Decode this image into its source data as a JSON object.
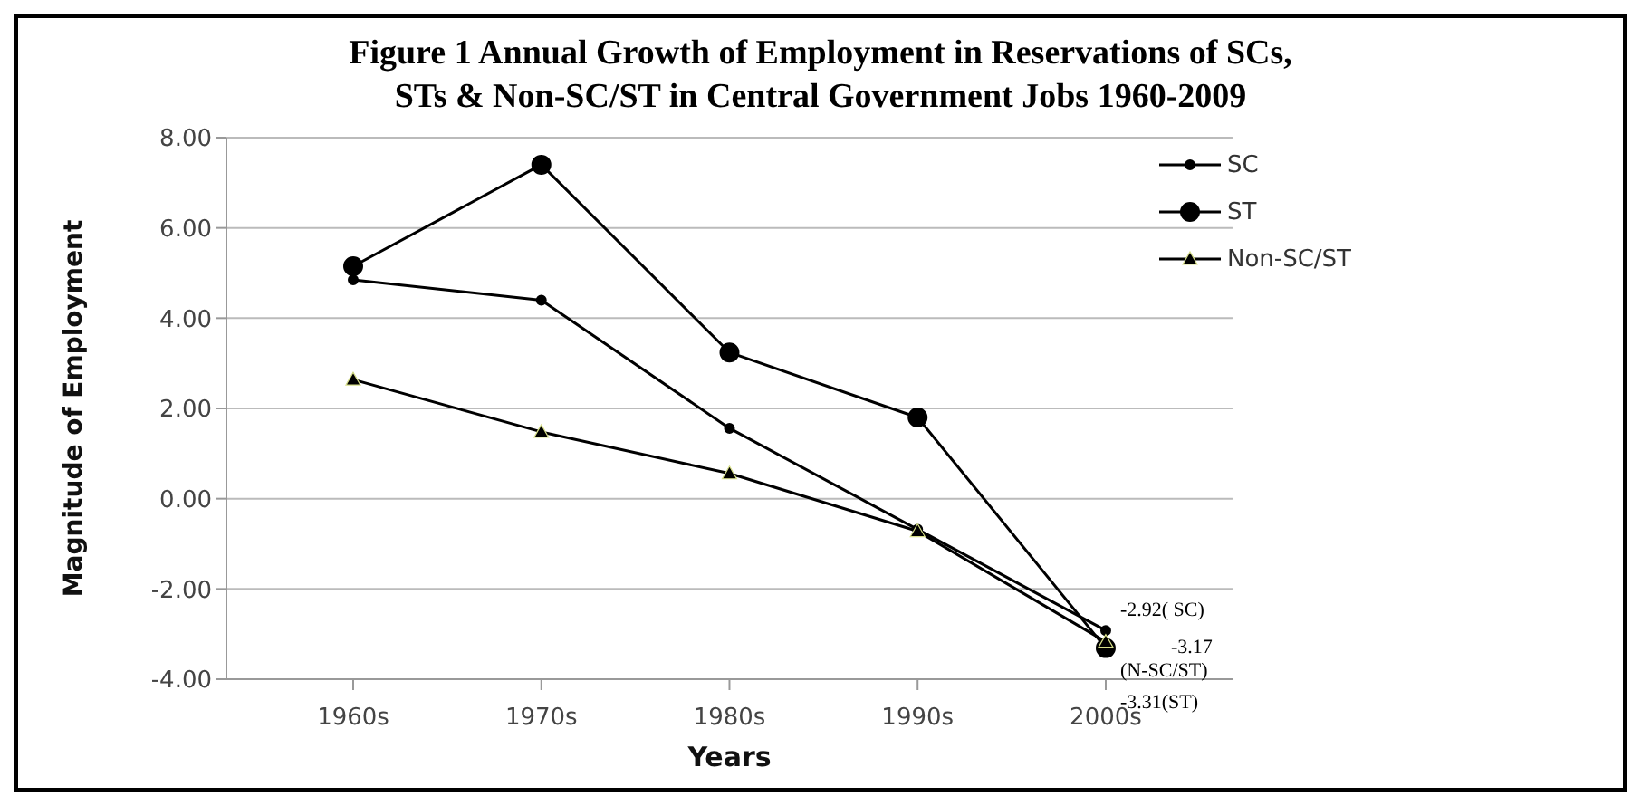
{
  "chart_data": {
    "type": "line",
    "title": "Figure 1  Annual Growth of Employment in Reservations  of SCs, STs & Non-SC/ST  in Central Government Jobs 1960-2009",
    "xlabel": "Years",
    "ylabel": "Magnitude of Employment",
    "categories": [
      "1960s",
      "1970s",
      "1980s",
      "1990s",
      "2000s"
    ],
    "series": [
      {
        "name": "SC",
        "color": "#000000",
        "marker": "circle",
        "values": [
          4.85,
          4.4,
          1.56,
          -0.68,
          -2.92
        ]
      },
      {
        "name": "ST",
        "color": "#000000",
        "marker": "circle",
        "values": [
          5.15,
          7.4,
          3.24,
          1.8,
          -3.31
        ]
      },
      {
        "name": "Non-SC/ST",
        "color": "#000000",
        "marker": "triangle",
        "values": [
          2.64,
          1.48,
          0.56,
          -0.72,
          -3.17
        ]
      }
    ],
    "ylim": [
      -4,
      8
    ],
    "yticks": [
      {
        "value": -4,
        "label": "-4.00"
      },
      {
        "value": -2,
        "label": "-2.00"
      },
      {
        "value": 0,
        "label": "0.00"
      },
      {
        "value": 2,
        "label": "2.00"
      },
      {
        "value": 4,
        "label": "4.00"
      },
      {
        "value": 6,
        "label": "6.00"
      },
      {
        "value": 8,
        "label": "8.00"
      }
    ],
    "grid": "y",
    "legend": "top right",
    "annotations": [
      {
        "text": "-2.92( SC)",
        "x": "2000s",
        "y": -2.92
      },
      {
        "text": "-3.17 (N-SC/ST)",
        "x": "2000s",
        "y": -3.17
      },
      {
        "text": "-3.31(ST)",
        "x": "2000s",
        "y": -3.31
      }
    ]
  }
}
